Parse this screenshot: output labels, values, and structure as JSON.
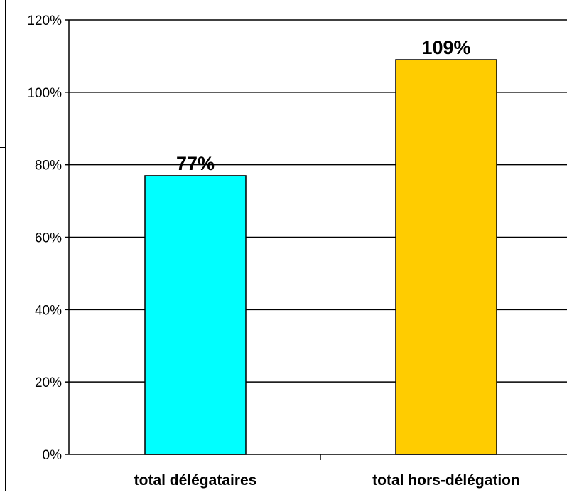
{
  "chart_data": {
    "type": "bar",
    "categories": [
      "total délégataires",
      "total hors-délégation"
    ],
    "values": [
      77,
      109
    ],
    "data_labels": [
      "77%",
      "109%"
    ],
    "colors": [
      "#00FFFF",
      "#FFCC00"
    ],
    "title": "",
    "xlabel": "",
    "ylabel": "",
    "ylim": [
      0,
      120
    ],
    "y_ticks": [
      {
        "value": 0,
        "label": "0%"
      },
      {
        "value": 20,
        "label": "20%"
      },
      {
        "value": 40,
        "label": "40%"
      },
      {
        "value": 60,
        "label": "60%"
      },
      {
        "value": 80,
        "label": "80%"
      },
      {
        "value": 100,
        "label": "100%"
      },
      {
        "value": 120,
        "label": "120%"
      }
    ],
    "grid": true,
    "legend": "none"
  }
}
